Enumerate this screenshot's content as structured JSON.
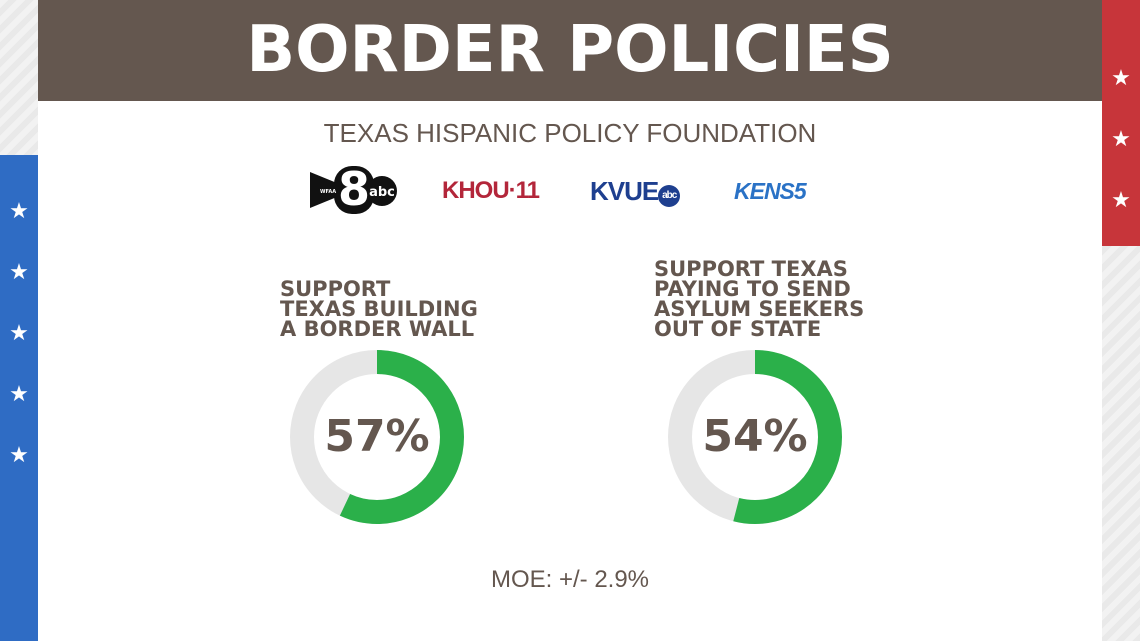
{
  "title": "BORDER POLICIES",
  "subtitle": "TEXAS HISPANIC POLICY FOUNDATION",
  "logos": {
    "wfaa_small": "WFAA",
    "wfaa_number": "8",
    "wfaa_network": "abc",
    "khou": "KHOU·11",
    "kvue": "KVUE",
    "kvue_network": "abc",
    "kens": "KENS5"
  },
  "moe": "MOE: +/- 2.9%",
  "colors": {
    "header_bg": "#64574f",
    "text": "#64574f",
    "ring_fill": "#2bb04a",
    "ring_track": "#e6e6e6",
    "flag_blue": "#2f6cc4",
    "flag_red": "#c7353a"
  },
  "chart_data": [
    {
      "type": "pie",
      "title": "SUPPORT\nTEXAS BUILDING\nA BORDER WALL",
      "value": 57,
      "label": "57%"
    },
    {
      "type": "pie",
      "title": "SUPPORT TEXAS\nPAYING TO SEND\nASYLUM SEEKERS\nOUT OF STATE",
      "value": 54,
      "label": "54%"
    }
  ]
}
